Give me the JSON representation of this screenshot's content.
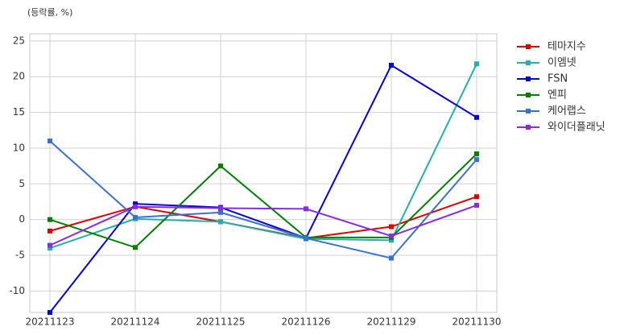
{
  "chart_data": {
    "type": "line",
    "unit_label": "(등락률, %)",
    "categories": [
      "20211123",
      "20211124",
      "20211125",
      "20211126",
      "20211129",
      "20211130"
    ],
    "series": [
      {
        "name": "테마지수",
        "color": "#e00000",
        "values": [
          -1.6,
          1.8,
          -0.3,
          -2.6,
          -1.0,
          3.2
        ]
      },
      {
        "name": "이엠넷",
        "color": "#20b2aa",
        "values": [
          -4.0,
          0.1,
          -0.3,
          -2.7,
          -2.9,
          21.8
        ]
      },
      {
        "name": "FSN",
        "color": "#0000e0",
        "values": [
          -13,
          2.2,
          1.7,
          -2.6,
          21.6,
          14.3
        ]
      },
      {
        "name": "엔피",
        "color": "#008000",
        "values": [
          0.0,
          -3.9,
          7.5,
          -2.5,
          -2.5,
          9.2
        ]
      },
      {
        "name": "케어랩스",
        "color": "#3a6fd8",
        "values": [
          11.0,
          0.3,
          1.0,
          -2.6,
          -5.4,
          8.4
        ]
      },
      {
        "name": "와이더플래닛",
        "color": "#8a2be2",
        "values": [
          -3.6,
          1.8,
          1.6,
          1.5,
          -2.3,
          2.0
        ]
      }
    ],
    "ylim": [
      -13,
      26
    ],
    "yticks": [
      -10,
      -5,
      0,
      5,
      10,
      15,
      20,
      25
    ],
    "grid": true
  }
}
